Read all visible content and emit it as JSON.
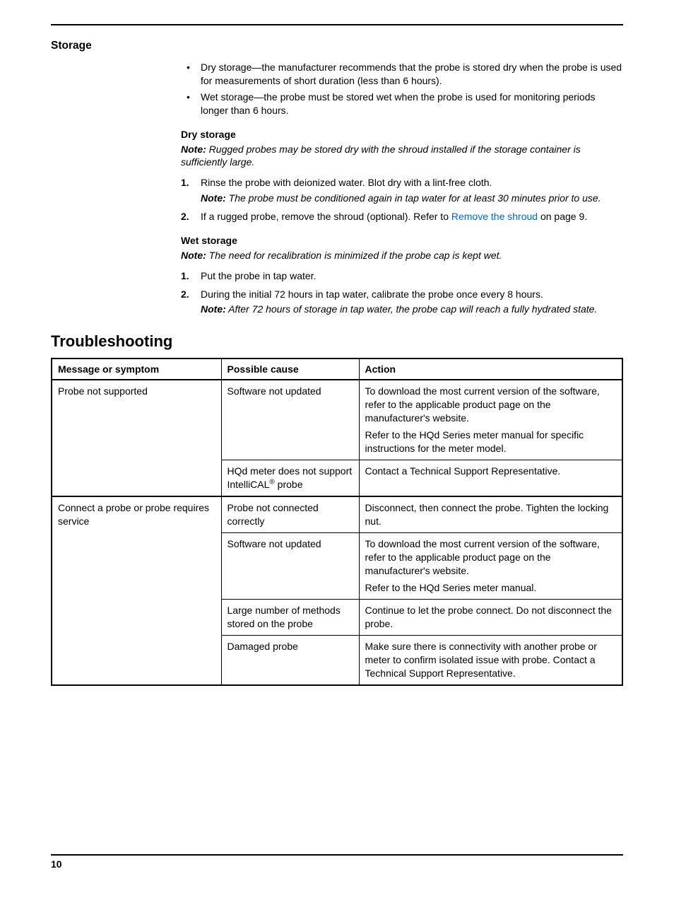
{
  "page_number": "10",
  "storage": {
    "heading": "Storage",
    "bullets": [
      "Dry storage—the manufacturer recommends that the probe is stored dry when the probe is used for measurements of short duration (less than 6 hours).",
      "Wet storage—the probe must be stored wet when the probe is used for monitoring periods longer than 6 hours."
    ],
    "dry": {
      "heading": "Dry storage",
      "note_label": "Note:",
      "note": " Rugged probes may be stored dry with the shroud installed if the storage container is sufficiently large.",
      "steps": [
        {
          "text": "Rinse the probe with deionized water. Blot dry with a lint-free cloth.",
          "note_label": "Note:",
          "note": " The probe must be conditioned again in tap water for at least 30 minutes prior to use."
        },
        {
          "text_pre": "If a rugged probe, remove the shroud (optional). Refer to ",
          "link": "Remove the shroud",
          "text_post": " on page 9."
        }
      ]
    },
    "wet": {
      "heading": "Wet storage",
      "note_label": "Note:",
      "note": " The need for recalibration is minimized if the probe cap is kept wet.",
      "steps": [
        {
          "text": "Put the probe in tap water."
        },
        {
          "text": "During the initial 72 hours in tap water, calibrate the probe once every 8 hours.",
          "note_label": "Note:",
          "note": " After 72 hours of storage in tap water, the probe cap will reach a fully hydrated state."
        }
      ]
    }
  },
  "troubleshooting": {
    "heading": "Troubleshooting",
    "headers": {
      "msg": "Message or symptom",
      "cause": "Possible cause",
      "action": "Action"
    },
    "groups": [
      {
        "msg": "Probe not supported",
        "rows": [
          {
            "cause": "Software not updated",
            "action_a": "To download the most current version of the software, refer to the applicable product page on the manufacturer's website.",
            "action_b": "Refer to the HQd Series meter manual for specific instructions for the meter model."
          },
          {
            "cause_pre": "HQd meter does not support IntelliCAL",
            "cause_sup": "®",
            "cause_post": " probe",
            "action": "Contact a Technical Support Representative."
          }
        ]
      },
      {
        "msg": "Connect a probe or probe requires service",
        "rows": [
          {
            "cause": "Probe not connected correctly",
            "action": "Disconnect, then connect the probe. Tighten the locking nut."
          },
          {
            "cause": "Software not updated",
            "action_a": "To download the most current version of the software, refer to the applicable product page on the manufacturer's website.",
            "action_b": "Refer to the HQd Series meter manual."
          },
          {
            "cause": "Large number of methods stored on the probe",
            "action": "Continue to let the probe connect. Do not disconnect the probe."
          },
          {
            "cause": "Damaged probe",
            "action": "Make sure there is connectivity with another probe or meter to confirm isolated issue with probe. Contact a Technical Support Representative."
          }
        ]
      }
    ]
  }
}
